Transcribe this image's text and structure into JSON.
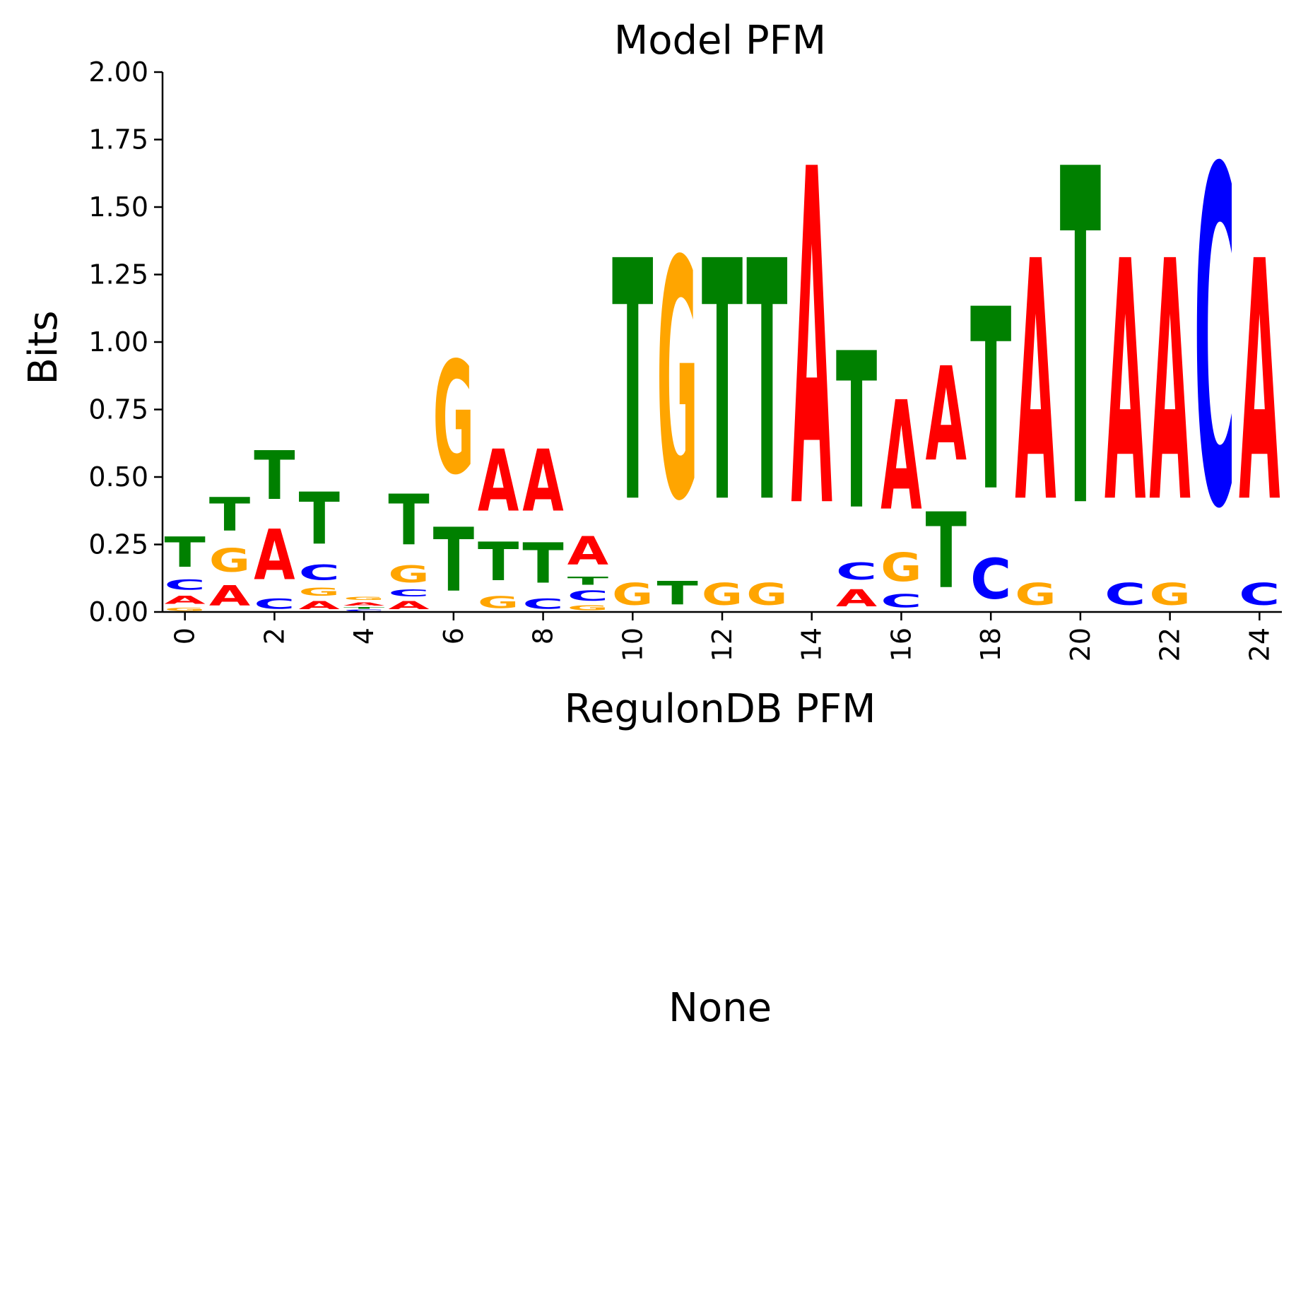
{
  "colors": {
    "A": "#ff0000",
    "C": "#0000ff",
    "G": "#ffa500",
    "T": "#008000"
  },
  "chart_data": [
    {
      "type": "sequence-logo",
      "title": "Model PFM",
      "xlabel": "RegulonDB PFM",
      "ylabel": "Bits",
      "ylim": [
        0,
        2
      ],
      "xlim": [
        -0.5,
        24.5
      ],
      "yticks": [
        "0.00",
        "0.25",
        "0.50",
        "0.75",
        "1.00",
        "1.25",
        "1.50",
        "1.75",
        "2.00"
      ],
      "xticks": [
        "0",
        "2",
        "4",
        "6",
        "8",
        "10",
        "12",
        "14",
        "16",
        "18",
        "20",
        "22",
        "24"
      ],
      "positions": [
        {
          "pos": 0,
          "stack": [
            [
              "G",
              0.02
            ],
            [
              "A",
              0.05
            ],
            [
              "C",
              0.06
            ],
            [
              "T",
              0.18
            ]
          ]
        },
        {
          "pos": 1,
          "stack": [
            [
              "A",
              0.12
            ],
            [
              "G",
              0.14
            ],
            [
              "T",
              0.2
            ]
          ]
        },
        {
          "pos": 2,
          "stack": [
            [
              "C",
              0.06
            ],
            [
              "A",
              0.3
            ],
            [
              "T",
              0.29
            ]
          ]
        },
        {
          "pos": 3,
          "stack": [
            [
              "A",
              0.05
            ],
            [
              "G",
              0.05
            ],
            [
              "C",
              0.09
            ],
            [
              "T",
              0.31
            ]
          ]
        },
        {
          "pos": 4,
          "stack": [
            [
              "C",
              0.01
            ],
            [
              "T",
              0.01
            ],
            [
              "A",
              0.02
            ],
            [
              "G",
              0.02
            ]
          ]
        },
        {
          "pos": 5,
          "stack": [
            [
              "A",
              0.05
            ],
            [
              "C",
              0.04
            ],
            [
              "G",
              0.1
            ],
            [
              "T",
              0.3
            ]
          ]
        },
        {
          "pos": 6,
          "stack": [
            [
              "T",
              0.38
            ],
            [
              "G",
              0.67
            ]
          ]
        },
        {
          "pos": 7,
          "stack": [
            [
              "G",
              0.07
            ],
            [
              "T",
              0.23
            ],
            [
              "A",
              0.37
            ]
          ]
        },
        {
          "pos": 8,
          "stack": [
            [
              "C",
              0.06
            ],
            [
              "T",
              0.24
            ],
            [
              "A",
              0.37
            ]
          ]
        },
        {
          "pos": 9,
          "stack": [
            [
              "G",
              0.03
            ],
            [
              "C",
              0.06
            ],
            [
              "T",
              0.05
            ],
            [
              "A",
              0.17
            ]
          ]
        },
        {
          "pos": 10,
          "stack": [
            [
              "G",
              0.13
            ],
            [
              "T",
              1.43
            ]
          ]
        },
        {
          "pos": 11,
          "stack": [
            [
              "T",
              0.14
            ],
            [
              "G",
              1.42
            ]
          ]
        },
        {
          "pos": 12,
          "stack": [
            [
              "G",
              0.13
            ],
            [
              "T",
              1.43
            ]
          ]
        },
        {
          "pos": 13,
          "stack": [
            [
              "G",
              0.13
            ],
            [
              "T",
              1.43
            ]
          ]
        },
        {
          "pos": 14,
          "stack": [
            [
              "A",
              2.0
            ]
          ]
        },
        {
          "pos": 15,
          "stack": [
            [
              "A",
              0.1
            ],
            [
              "C",
              0.1
            ],
            [
              "T",
              0.93
            ]
          ]
        },
        {
          "pos": 16,
          "stack": [
            [
              "C",
              0.08
            ],
            [
              "G",
              0.17
            ],
            [
              "A",
              0.65
            ]
          ]
        },
        {
          "pos": 17,
          "stack": [
            [
              "T",
              0.45
            ],
            [
              "A",
              0.56
            ]
          ]
        },
        {
          "pos": 18,
          "stack": [
            [
              "C",
              0.24
            ],
            [
              "T",
              1.08
            ]
          ]
        },
        {
          "pos": 19,
          "stack": [
            [
              "G",
              0.13
            ],
            [
              "A",
              1.43
            ]
          ]
        },
        {
          "pos": 20,
          "stack": [
            [
              "T",
              2.0
            ]
          ]
        },
        {
          "pos": 21,
          "stack": [
            [
              "C",
              0.13
            ],
            [
              "A",
              1.43
            ]
          ]
        },
        {
          "pos": 22,
          "stack": [
            [
              "G",
              0.13
            ],
            [
              "A",
              1.43
            ]
          ]
        },
        {
          "pos": 23,
          "stack": [
            [
              "C",
              2.0
            ]
          ]
        },
        {
          "pos": 24,
          "stack": [
            [
              "C",
              0.13
            ],
            [
              "A",
              1.43
            ]
          ]
        }
      ]
    },
    {
      "type": "empty",
      "title": "None"
    }
  ]
}
